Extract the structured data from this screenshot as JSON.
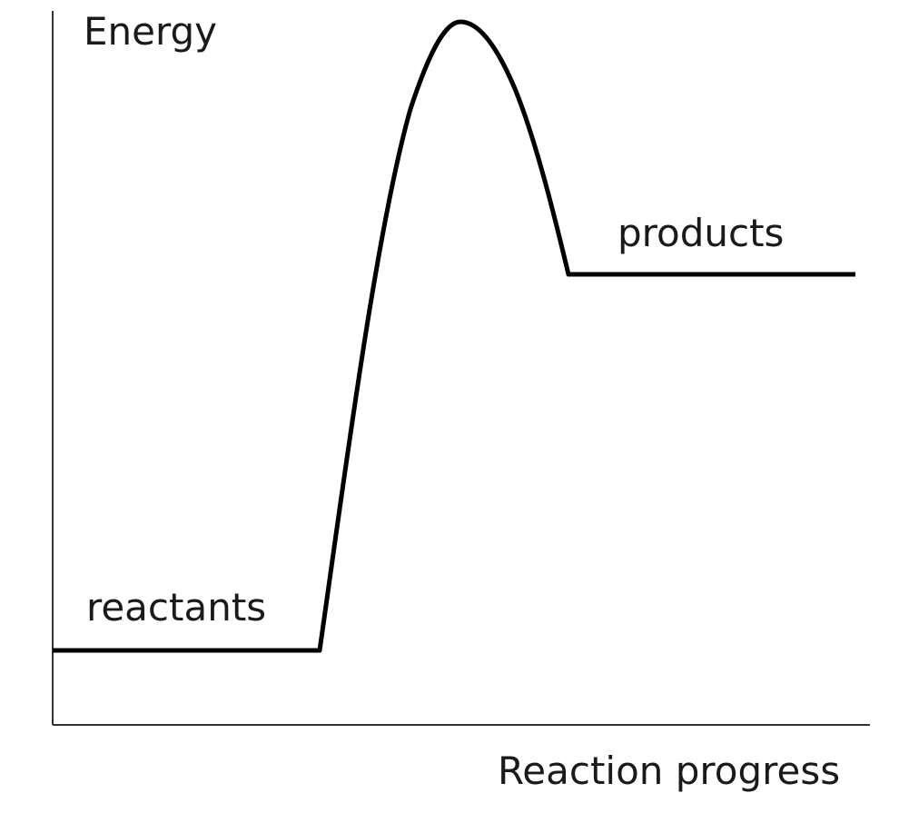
{
  "diagram": {
    "type": "energy-profile",
    "y_axis_label": "Energy",
    "x_axis_label": "Reaction progress",
    "reactants_label": "reactants",
    "products_label": "products",
    "line_color": "#000000",
    "axis_color": "#333333"
  }
}
